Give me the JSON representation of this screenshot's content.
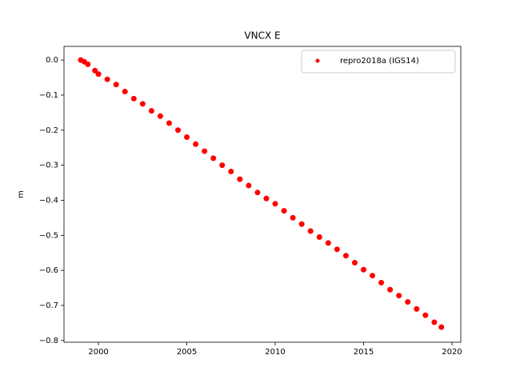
{
  "chart_data": {
    "type": "scatter",
    "title": "VNCX E",
    "y_label": "m",
    "x": [
      1999.0,
      1999.2,
      1999.4,
      1999.8,
      2000.0,
      2000.5,
      2001.0,
      2001.5,
      2002.0,
      2002.5,
      2003.0,
      2003.5,
      2004.0,
      2004.5,
      2005.0,
      2005.5,
      2006.0,
      2006.5,
      2007.0,
      2007.5,
      2008.0,
      2008.5,
      2009.0,
      2009.5,
      2010.0,
      2010.5,
      2011.0,
      2011.5,
      2012.0,
      2012.5,
      2013.0,
      2013.5,
      2014.0,
      2014.5,
      2015.0,
      2015.5,
      2016.0,
      2016.5,
      2017.0,
      2017.5,
      2018.0,
      2018.5,
      2019.0,
      2019.4
    ],
    "series": [
      {
        "name": "repro2018a (IGS14)",
        "color": "#ff0000",
        "values": [
          0.0,
          -0.005,
          -0.012,
          -0.03,
          -0.04,
          -0.055,
          -0.07,
          -0.09,
          -0.11,
          -0.125,
          -0.145,
          -0.16,
          -0.18,
          -0.2,
          -0.22,
          -0.24,
          -0.26,
          -0.28,
          -0.3,
          -0.318,
          -0.34,
          -0.358,
          -0.378,
          -0.395,
          -0.41,
          -0.43,
          -0.45,
          -0.468,
          -0.488,
          -0.505,
          -0.522,
          -0.54,
          -0.558,
          -0.578,
          -0.598,
          -0.615,
          -0.635,
          -0.655,
          -0.672,
          -0.69,
          -0.71,
          -0.728,
          -0.748,
          -0.762
        ]
      }
    ],
    "xlim": [
      1998.05,
      2020.5
    ],
    "ylim": [
      -0.805,
      0.039
    ],
    "xticks": [
      2000,
      2005,
      2010,
      2015,
      2020
    ],
    "yticks": [
      {
        "value": 0,
        "label": "0.0"
      },
      {
        "value": -0.1,
        "label": "−0.1"
      },
      {
        "value": -0.2,
        "label": "−0.2"
      },
      {
        "value": -0.3,
        "label": "−0.3"
      },
      {
        "value": -0.4,
        "label": "−0.4"
      },
      {
        "value": -0.5,
        "label": "−0.5"
      },
      {
        "value": -0.6,
        "label": "−0.6"
      },
      {
        "value": -0.7,
        "label": "−0.7"
      },
      {
        "value": -0.8,
        "label": "−0.8"
      }
    ],
    "legend": "upper right"
  }
}
